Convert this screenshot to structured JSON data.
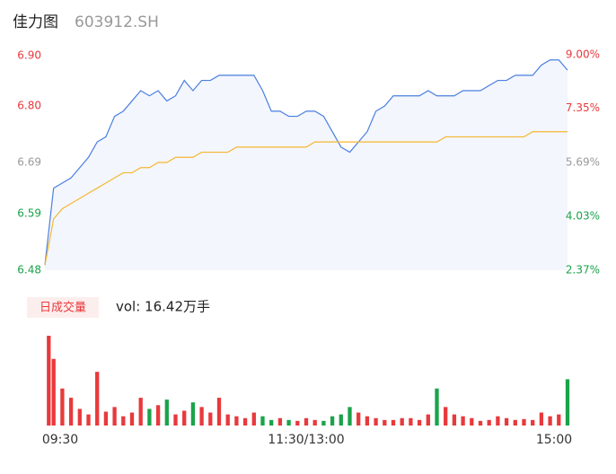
{
  "chart_data": {
    "type": "intraday",
    "title": "佳力图",
    "subtitle": "603912.SH",
    "volume_label": "日成交量",
    "volume_text": "vol: 16.42万手",
    "xlim": [
      0,
      240
    ],
    "xticks": [
      {
        "value": 0,
        "label": "09:30"
      },
      {
        "value": 120,
        "label": "11:30/13:00"
      },
      {
        "value": 240,
        "label": "15:00"
      }
    ],
    "ylim": [
      6.48,
      6.9
    ],
    "yticks": [
      6.48,
      6.59,
      6.69,
      {
        "value": 6.8,
        "label": "6.80"
      },
      {
        "value": 6.9,
        "label": "6.90"
      }
    ],
    "y2lim": [
      2.37,
      9.0
    ],
    "y2ticks": [
      {
        "value": 2.37,
        "label": "2.37%"
      },
      {
        "value": 4.03,
        "label": "4.03%"
      },
      {
        "value": 5.69,
        "label": "5.69%"
      },
      {
        "value": 7.35,
        "label": "7.35%"
      },
      {
        "value": 9.0,
        "label": "9.00%"
      }
    ],
    "tick_colors": [
      "#1aa34a",
      "#1aa34a",
      "#999999",
      "#e8393c",
      "#e8393c"
    ],
    "up_color": "#e8393c",
    "down_color": "#1aa34a",
    "area_color": "#f3f6fd",
    "x": [
      0,
      4,
      8,
      12,
      16,
      20,
      24,
      28,
      32,
      36,
      40,
      44,
      48,
      52,
      56,
      60,
      64,
      68,
      72,
      76,
      80,
      84,
      88,
      92,
      96,
      100,
      104,
      108,
      112,
      116,
      120,
      124,
      128,
      132,
      136,
      140,
      144,
      148,
      152,
      156,
      160,
      164,
      168,
      172,
      176,
      180,
      184,
      188,
      192,
      196,
      200,
      204,
      208,
      212,
      216,
      220,
      224,
      228,
      232,
      236,
      240
    ],
    "series": [
      {
        "name": "price",
        "color": "#4a7fe0",
        "values": [
          6.49,
          6.64,
          6.65,
          6.66,
          6.68,
          6.7,
          6.73,
          6.74,
          6.78,
          6.79,
          6.81,
          6.83,
          6.82,
          6.83,
          6.81,
          6.82,
          6.85,
          6.83,
          6.85,
          6.85,
          6.86,
          6.86,
          6.86,
          6.86,
          6.86,
          6.83,
          6.79,
          6.79,
          6.78,
          6.78,
          6.79,
          6.79,
          6.78,
          6.75,
          6.72,
          6.71,
          6.73,
          6.75,
          6.79,
          6.8,
          6.82,
          6.82,
          6.82,
          6.82,
          6.83,
          6.82,
          6.82,
          6.82,
          6.83,
          6.83,
          6.83,
          6.84,
          6.85,
          6.85,
          6.86,
          6.86,
          6.86,
          6.88,
          6.89,
          6.89,
          6.87
        ]
      },
      {
        "name": "average",
        "color": "#f5b731",
        "values": [
          6.49,
          6.58,
          6.6,
          6.61,
          6.62,
          6.63,
          6.64,
          6.65,
          6.66,
          6.67,
          6.67,
          6.68,
          6.68,
          6.69,
          6.69,
          6.7,
          6.7,
          6.7,
          6.71,
          6.71,
          6.71,
          6.71,
          6.72,
          6.72,
          6.72,
          6.72,
          6.72,
          6.72,
          6.72,
          6.72,
          6.72,
          6.73,
          6.73,
          6.73,
          6.73,
          6.73,
          6.73,
          6.73,
          6.73,
          6.73,
          6.73,
          6.73,
          6.73,
          6.73,
          6.73,
          6.73,
          6.74,
          6.74,
          6.74,
          6.74,
          6.74,
          6.74,
          6.74,
          6.74,
          6.74,
          6.74,
          6.75,
          6.75,
          6.75,
          6.75,
          6.75
        ]
      }
    ],
    "volume": [
      97,
      72,
      40,
      30,
      18,
      12,
      58,
      15,
      20,
      10,
      14,
      30,
      18,
      22,
      28,
      12,
      16,
      25,
      20,
      14,
      30,
      12,
      10,
      8,
      14,
      10,
      6,
      8,
      6,
      5,
      8,
      6,
      5,
      10,
      12,
      20,
      14,
      10,
      8,
      6,
      6,
      8,
      8,
      6,
      12,
      40,
      20,
      12,
      10,
      8,
      5,
      6,
      10,
      8,
      6,
      7,
      6,
      14,
      10,
      12,
      50
    ]
  }
}
